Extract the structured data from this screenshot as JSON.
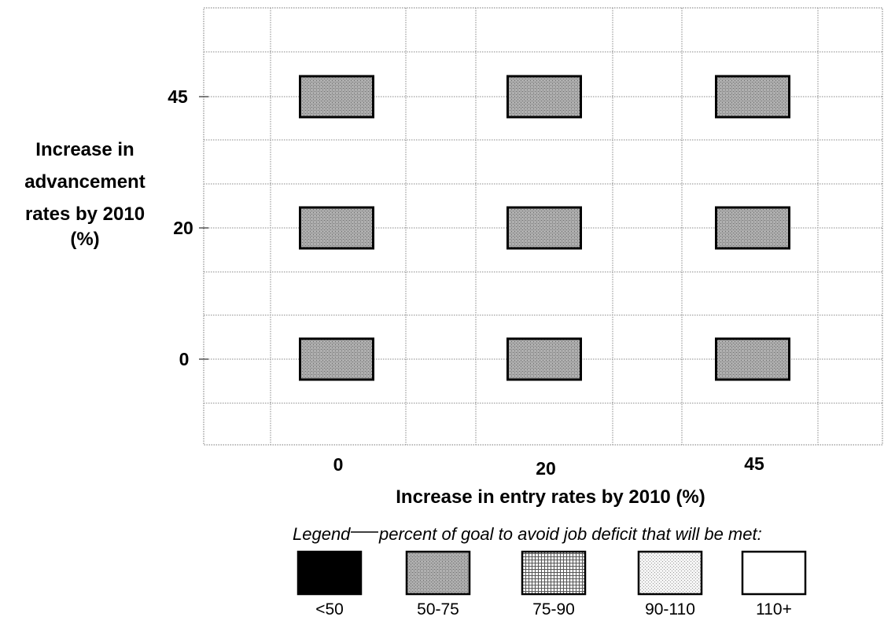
{
  "chart_data": {
    "type": "heatmap",
    "title": "",
    "xlabel": "Increase in entry rates by 2010 (%)",
    "ylabel": [
      "Increase in",
      "advancement",
      "rates by 2010",
      "(%)"
    ],
    "x_categories": [
      "0",
      "20",
      "45"
    ],
    "y_categories": [
      "45",
      "20",
      "0"
    ],
    "grid": true,
    "cells": [
      {
        "x": "0",
        "y": "45",
        "category": "50-75"
      },
      {
        "x": "20",
        "y": "45",
        "category": "50-75"
      },
      {
        "x": "45",
        "y": "45",
        "category": "50-75"
      },
      {
        "x": "0",
        "y": "20",
        "category": "50-75"
      },
      {
        "x": "20",
        "y": "20",
        "category": "50-75"
      },
      {
        "x": "45",
        "y": "20",
        "category": "50-75"
      },
      {
        "x": "0",
        "y": "0",
        "category": "50-75"
      },
      {
        "x": "20",
        "y": "0",
        "category": "50-75"
      },
      {
        "x": "45",
        "y": "0",
        "category": "50-75"
      }
    ],
    "legend": {
      "title": "Legend",
      "caption": "percent of goal to avoid job deficit that will be met:",
      "placement": "bottom",
      "items": [
        {
          "label": "<50",
          "pattern": "solid",
          "color": "#000000"
        },
        {
          "label": "50-75",
          "pattern": "dark-dots",
          "color": "#a9a9a9"
        },
        {
          "label": "75-90",
          "pattern": "grid",
          "color": "#f0f0f0"
        },
        {
          "label": "90-110",
          "pattern": "light-dots",
          "color": "#ececec"
        },
        {
          "label": "110+",
          "pattern": "blank",
          "color": "#ffffff"
        }
      ]
    }
  }
}
